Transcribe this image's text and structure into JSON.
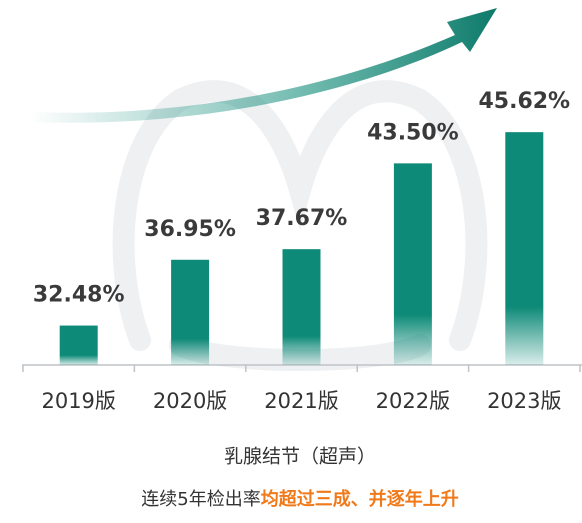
{
  "chart_data": {
    "type": "bar",
    "categories": [
      "2019版",
      "2020版",
      "2021版",
      "2022版",
      "2023版"
    ],
    "values": [
      32.48,
      36.95,
      37.67,
      43.5,
      45.62
    ],
    "value_labels": [
      "32.48%",
      "36.95%",
      "37.67%",
      "43.50%",
      "45.62%"
    ],
    "color": "#0e8a78",
    "ylim": [
      29.8,
      54.6
    ],
    "subtitle": "乳腺结节（超声）",
    "annotation": "连续5年检出率",
    "annotation_highlight": "均超过三成、并逐年上升",
    "highlight_color": "#f07a1a"
  }
}
